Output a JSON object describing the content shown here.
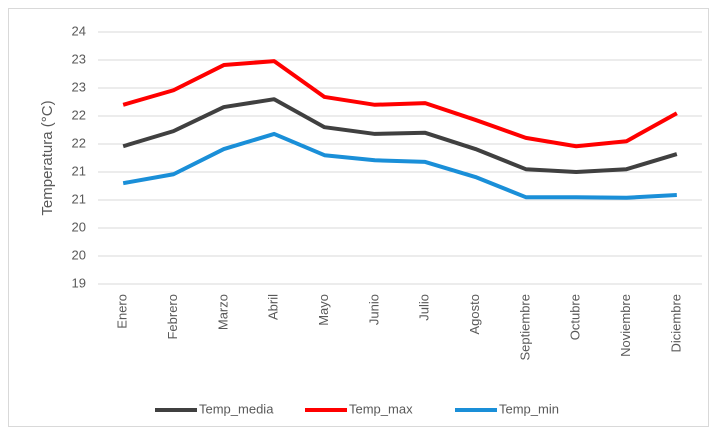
{
  "chart_data": {
    "type": "line",
    "y_label": "Temperatura (°C)",
    "categories": [
      "Enero",
      "Febrero",
      "Marzo",
      "Abril",
      "Mayo",
      "Junio",
      "Julio",
      "Agosto",
      "Septiembre",
      "Octubre",
      "Noviembre",
      "Diciembre"
    ],
    "series": [
      {
        "name": "Temp_media",
        "color": "#404040",
        "values": [
          21.46,
          21.73,
          22.16,
          22.3,
          21.8,
          21.68,
          21.7,
          21.41,
          21.05,
          21.0,
          21.05,
          21.32
        ]
      },
      {
        "name": "Temp_max",
        "color": "#ff0000",
        "values": [
          22.2,
          22.46,
          22.91,
          22.98,
          22.34,
          22.2,
          22.23,
          21.93,
          21.61,
          21.46,
          21.55,
          22.05
        ]
      },
      {
        "name": "Temp_min",
        "color": "#1a8fd8",
        "values": [
          20.8,
          20.96,
          21.41,
          21.68,
          21.3,
          21.21,
          21.18,
          20.91,
          20.55,
          20.55,
          20.54,
          20.59
        ]
      }
    ],
    "ylim": [
      19,
      23.5
    ],
    "yticks": [
      19,
      {
        "value": 19.5,
        "label": "20"
      },
      20,
      {
        "value": 20.5,
        "label": "21"
      },
      21,
      {
        "value": 21.5,
        "label": "22"
      },
      22,
      {
        "value": 22.5,
        "label": "23"
      },
      23,
      {
        "value": 23.5,
        "label": "24"
      }
    ],
    "grid": true,
    "legend": "bottom"
  }
}
